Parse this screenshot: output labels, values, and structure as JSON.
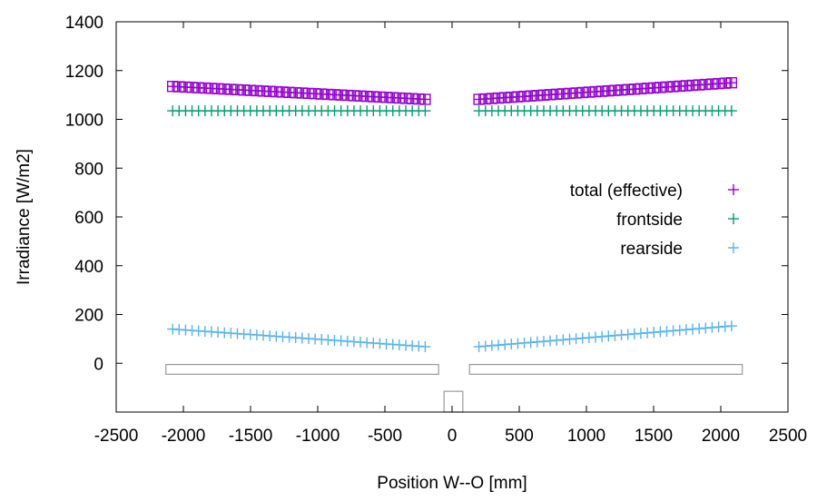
{
  "chart_data": {
    "type": "scatter",
    "title": "",
    "xlabel": "Position W--O [mm]",
    "ylabel": "Irradiance [W/m2]",
    "xlim": [
      -2500,
      2500
    ],
    "ylim": [
      -200,
      1400
    ],
    "x_ticks": [
      -2500,
      -2000,
      -1500,
      -1000,
      -500,
      0,
      500,
      1000,
      1500,
      2000,
      2500
    ],
    "y_ticks": [
      0,
      200,
      400,
      600,
      800,
      1000,
      1200,
      1400
    ],
    "grid": false,
    "legend_position": "right-middle",
    "series": [
      {
        "name": "total (effective)",
        "marker": "plus-in-square",
        "color": "#9400d3",
        "left": {
          "x_start": -2080,
          "x_end": -200,
          "count": 40,
          "y_start": 1135,
          "y_end": 1082
        },
        "right": {
          "x_start": 200,
          "x_end": 2080,
          "count": 40,
          "y_start": 1082,
          "y_end": 1150
        }
      },
      {
        "name": "frontside",
        "marker": "plus",
        "color": "#009e73",
        "left": {
          "x_start": -2080,
          "x_end": -200,
          "count": 40,
          "y_start": 1035,
          "y_end": 1035
        },
        "right": {
          "x_start": 200,
          "x_end": 2080,
          "count": 40,
          "y_start": 1035,
          "y_end": 1035
        }
      },
      {
        "name": "rearside",
        "marker": "plus",
        "color": "#56b4e9",
        "left": {
          "x_start": -2080,
          "x_end": -200,
          "count": 40,
          "y_start": 140,
          "y_end": 68
        },
        "right": {
          "x_start": 200,
          "x_end": 2080,
          "count": 40,
          "y_start": 68,
          "y_end": 153
        }
      }
    ],
    "annotations": [
      {
        "name": "left-module-outline",
        "type": "rect",
        "x": [
          -2130,
          -100
        ],
        "y": [
          -45,
          -5
        ]
      },
      {
        "name": "right-module-outline",
        "type": "rect",
        "x": [
          130,
          2160
        ],
        "y": [
          -45,
          -5
        ]
      },
      {
        "name": "center-gap-outline",
        "type": "rect",
        "x": [
          -60,
          80
        ],
        "y": [
          -200,
          -115
        ]
      }
    ]
  }
}
